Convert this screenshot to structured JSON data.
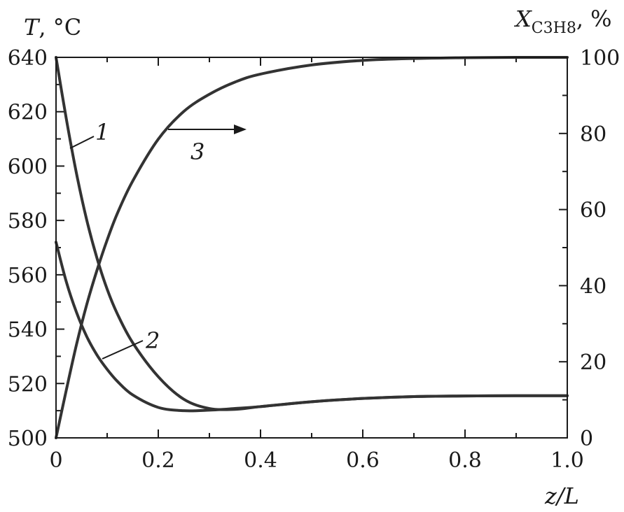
{
  "chart_data": {
    "type": "line",
    "x_axis": {
      "label_italic": "z/L",
      "range": [
        0,
        1.0
      ],
      "ticks": [
        0,
        0.2,
        0.4,
        0.6,
        0.8,
        1.0
      ],
      "tick_labels": [
        "0",
        "0.2",
        "0.4",
        "0.6",
        "0.8",
        "1.0"
      ]
    },
    "y_left": {
      "label_italic": "T",
      "label_unit": ", °C",
      "range": [
        500,
        640
      ],
      "ticks": [
        500,
        520,
        540,
        560,
        580,
        600,
        620,
        640
      ],
      "tick_labels": [
        "500",
        "520",
        "540",
        "560",
        "580",
        "600",
        "620",
        "640"
      ]
    },
    "y_right": {
      "label_italic": "X",
      "label_sub_1": "C",
      "label_sub_2": "3",
      "label_sub_3": "H",
      "label_sub_4": "8",
      "label_unit": ", %",
      "range": [
        0,
        100
      ],
      "ticks": [
        0,
        20,
        40,
        60,
        80,
        100
      ],
      "tick_labels": [
        "0",
        "20",
        "40",
        "60",
        "80",
        "100"
      ]
    },
    "grid": false,
    "series": [
      {
        "name": "1",
        "axis": "left",
        "x": [
          0,
          0.02,
          0.04,
          0.06,
          0.08,
          0.1,
          0.12,
          0.15,
          0.2,
          0.25,
          0.3,
          0.35,
          0.4,
          0.5,
          0.6,
          0.7,
          0.8,
          0.9,
          1.0
        ],
        "y": [
          640,
          617.5,
          597.3,
          580.2,
          566.2,
          554.7,
          545.6,
          535.0,
          522.5,
          514.2,
          510.8,
          510.5,
          511.5,
          513.3,
          514.5,
          515.2,
          515.4,
          515.5,
          515.5
        ]
      },
      {
        "name": "2",
        "axis": "left",
        "x": [
          0,
          0.02,
          0.04,
          0.06,
          0.08,
          0.1,
          0.12,
          0.15,
          0.2,
          0.25,
          0.3,
          0.35,
          0.4,
          0.5,
          0.6,
          0.7,
          0.8,
          0.9,
          1.0
        ],
        "y": [
          572,
          557.5,
          546.2,
          537.3,
          530.5,
          525.2,
          520.8,
          515.8,
          511.2,
          510.0,
          510.2,
          510.8,
          511.5,
          513.3,
          514.5,
          515.2,
          515.4,
          515.5,
          515.5
        ]
      },
      {
        "name": "3",
        "axis": "right",
        "x": [
          0,
          0.02,
          0.04,
          0.06,
          0.08,
          0.1,
          0.12,
          0.15,
          0.2,
          0.25,
          0.3,
          0.35,
          0.4,
          0.5,
          0.6,
          0.7,
          0.8,
          0.9,
          1.0
        ],
        "y": [
          0,
          12.5,
          24.5,
          35.0,
          44.0,
          52.0,
          59.0,
          67.5,
          78.5,
          85.8,
          90.3,
          93.5,
          95.6,
          98.0,
          99.2,
          99.7,
          99.9,
          100,
          100
        ]
      }
    ],
    "annotations": [
      {
        "text": "1",
        "curve": "1"
      },
      {
        "text": "2",
        "curve": "2"
      },
      {
        "text": "3",
        "curve": "3",
        "arrow": "right"
      }
    ]
  }
}
